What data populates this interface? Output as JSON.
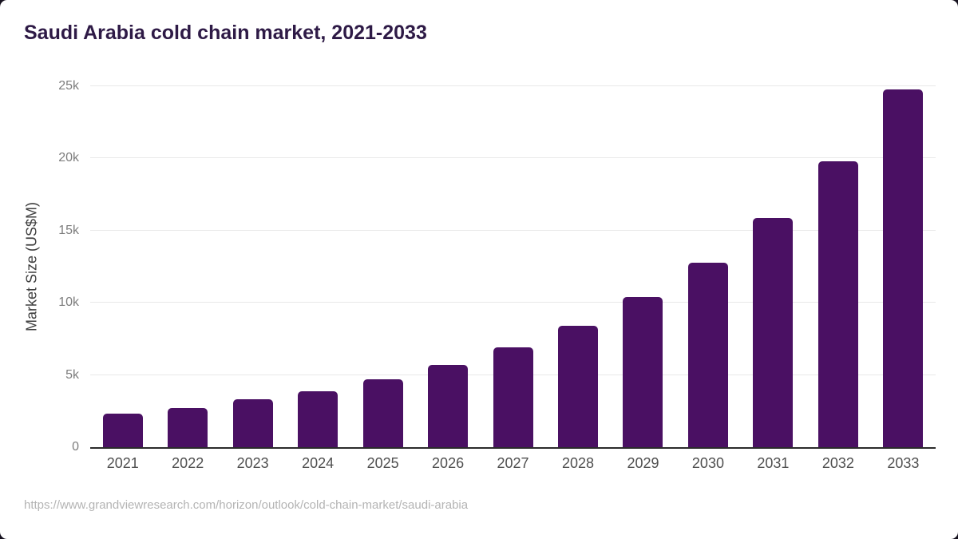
{
  "page": {
    "title": "Saudi Arabia cold chain market, 2021-2033",
    "source_url": "https://www.grandviewresearch.com/horizon/outlook/cold-chain-market/saudi-arabia"
  },
  "chart_data": {
    "type": "bar",
    "title": "Saudi Arabia cold chain market, 2021-2033",
    "categories": [
      "2021",
      "2022",
      "2023",
      "2024",
      "2025",
      "2026",
      "2027",
      "2028",
      "2029",
      "2030",
      "2031",
      "2032",
      "2033"
    ],
    "values": [
      2300,
      2700,
      3300,
      3900,
      4700,
      5700,
      6900,
      8400,
      10400,
      12800,
      15900,
      19800,
      24800
    ],
    "series_name": "Market Size",
    "xlabel": "",
    "ylabel": "Market Size (US$M)",
    "ylim": [
      0,
      25000
    ],
    "yticks": [
      0,
      5000,
      10000,
      15000,
      20000,
      25000
    ],
    "ytick_labels": [
      "0",
      "5k",
      "10k",
      "15k",
      "20k",
      "25k"
    ],
    "grid": true,
    "gridlines": "horizontal-only",
    "legend": false,
    "legend_position": "none"
  },
  "colors": {
    "title": "#2e1a46",
    "bar": "#4a1063",
    "gridline": "#e9e9e9",
    "axis_line": "#2b2b2b",
    "ytick_text": "#7d7d7d",
    "xtick_text": "#4f4f4f",
    "ylabel_text": "#3f3f3f",
    "source_text": "#b4b4b4",
    "background": "#ffffff",
    "frame": "#16121f"
  }
}
